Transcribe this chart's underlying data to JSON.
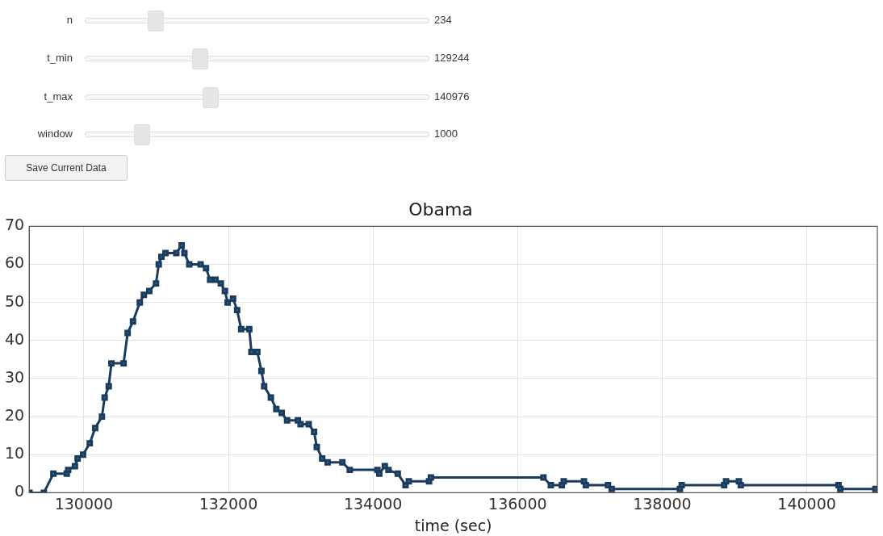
{
  "chart_data": {
    "type": "line",
    "title": "Obama",
    "xlabel": "time (sec)",
    "annotations": [
      "n",
      "234",
      "t_min",
      "129244",
      "t_max",
      "140976",
      "window",
      "1000",
      "Save Current Data"
    ],
    "xlim": [
      129244,
      140976
    ],
    "xticks": [
      130000,
      132000,
      134000,
      136000,
      138000,
      140000
    ],
    "ylim": [
      0,
      70
    ],
    "yticks": [
      0,
      10,
      20,
      30,
      40,
      50,
      60,
      70
    ],
    "grid": true,
    "legend": false,
    "marker": "square",
    "line_style": "solid",
    "series": [
      {
        "color": "#1b3b5a",
        "x": [
          129248,
          129447,
          129578,
          129764,
          129783,
          129877,
          129914,
          129989,
          130082,
          130157,
          130250,
          130288,
          130344,
          130381,
          130550,
          130606,
          130680,
          130774,
          130830,
          130905,
          130998,
          131036,
          131073,
          131129,
          131279,
          131353,
          131391,
          131458,
          131615,
          131690,
          131746,
          131821,
          131895,
          131951,
          131989,
          132064,
          132120,
          132176,
          132288,
          132318,
          132400,
          132456,
          132494,
          132587,
          132662,
          132737,
          132811,
          132961,
          132998,
          133110,
          133185,
          133222,
          133297,
          133372,
          133576,
          133678,
          134061,
          134087,
          134163,
          134214,
          134342,
          134450,
          134495,
          134775,
          134801,
          136357,
          136459,
          136612,
          136638,
          136918,
          136944,
          137250,
          137301,
          138245,
          138270,
          138857,
          138883,
          139061,
          139087,
          140439,
          140464,
          140949
        ],
        "values": [
          0,
          0,
          5,
          5,
          6,
          7,
          9,
          10,
          13,
          17,
          20,
          25,
          28,
          34,
          34,
          42,
          45,
          50,
          52,
          53,
          55,
          60,
          62,
          63,
          63,
          65,
          63,
          60,
          60,
          59,
          56,
          56,
          55,
          53,
          50,
          51,
          48,
          43,
          43,
          37,
          37,
          32,
          28,
          25,
          22,
          21,
          19,
          19,
          18,
          18,
          16,
          12,
          9,
          8,
          8,
          6,
          6,
          5,
          7,
          6,
          5,
          2,
          3,
          3,
          4,
          4,
          2,
          2,
          3,
          3,
          2,
          2,
          1,
          1,
          2,
          2,
          3,
          3,
          2,
          2,
          1,
          1
        ]
      }
    ]
  }
}
